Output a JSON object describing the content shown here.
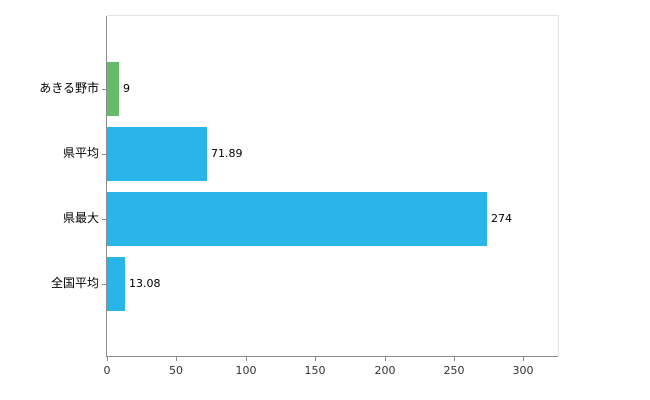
{
  "chart_data": {
    "type": "bar",
    "orientation": "horizontal",
    "title": "",
    "xlabel": "",
    "ylabel": "",
    "categories": [
      "あきる野市",
      "県平均",
      "県最大",
      "全国平均"
    ],
    "values": [
      9,
      71.89,
      274,
      13.08
    ],
    "value_labels": [
      "9",
      "71.89",
      "274",
      "13.08"
    ],
    "bar_colors": [
      "#66bb6a",
      "#29b5e8",
      "#29b5e8",
      "#29b5e8"
    ],
    "xlim": [
      0,
      325
    ],
    "xticks": [
      0,
      50,
      100,
      150,
      200,
      250,
      300
    ],
    "grid": false,
    "legend": "none",
    "axis_color": "#8c8c8c",
    "background_color": "#ffffff"
  }
}
